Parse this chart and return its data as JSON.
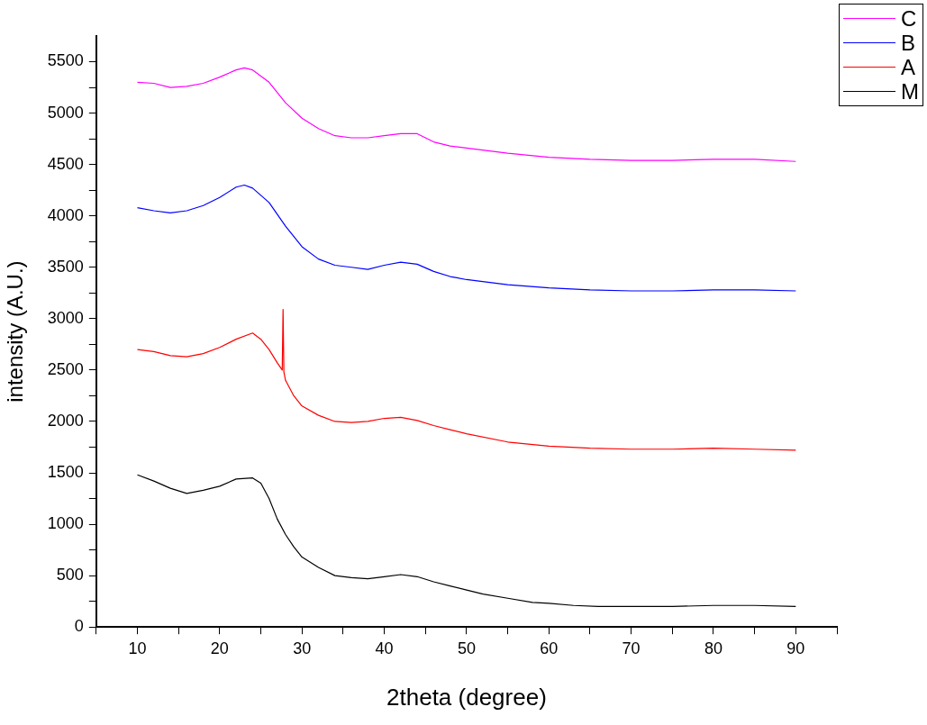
{
  "chart_data": {
    "type": "line",
    "xlabel": "2theta (degree)",
    "ylabel": "intensity (A.U.)",
    "xlim": [
      5,
      95
    ],
    "xticks": [
      {
        "value": 5,
        "label": null
      },
      10,
      {
        "value": 15,
        "label": null
      },
      20,
      {
        "value": 25,
        "label": null
      },
      30,
      {
        "value": 35,
        "label": null
      },
      40,
      {
        "value": 45,
        "label": null
      },
      50,
      {
        "value": 55,
        "label": null
      },
      60,
      {
        "value": 65,
        "label": null
      },
      70,
      {
        "value": 75,
        "label": null
      },
      80,
      {
        "value": 85,
        "label": null
      },
      90,
      {
        "value": 95,
        "label": null
      }
    ],
    "ylim": [
      0,
      5750
    ],
    "yticks": [
      0,
      {
        "value": 250,
        "label": null
      },
      500,
      {
        "value": 750,
        "label": null
      },
      1000,
      {
        "value": 1250,
        "label": null
      },
      1500,
      {
        "value": 1750,
        "label": null
      },
      2000,
      {
        "value": 2250,
        "label": null
      },
      2500,
      {
        "value": 2750,
        "label": null
      },
      3000,
      {
        "value": 3250,
        "label": null
      },
      3500,
      {
        "value": 3750,
        "label": null
      },
      4000,
      {
        "value": 4250,
        "label": null
      },
      4500,
      {
        "value": 4750,
        "label": null
      },
      5000,
      {
        "value": 5250,
        "label": null
      },
      5500
    ],
    "grid": false,
    "legend": "top right",
    "series": [
      {
        "name": "C",
        "color": "#ff00ff",
        "x": [
          10,
          12,
          14,
          16,
          18,
          20,
          22,
          23,
          24,
          26,
          28,
          30,
          32,
          34,
          36,
          38,
          40,
          42,
          44,
          46,
          48,
          50,
          55,
          60,
          65,
          70,
          75,
          80,
          85,
          90
        ],
        "values": [
          5300,
          5290,
          5250,
          5260,
          5290,
          5350,
          5420,
          5440,
          5420,
          5300,
          5100,
          4950,
          4850,
          4780,
          4760,
          4760,
          4780,
          4800,
          4800,
          4720,
          4680,
          4660,
          4610,
          4570,
          4550,
          4540,
          4540,
          4550,
          4550,
          4530
        ]
      },
      {
        "name": "B",
        "color": "#0000ff",
        "x": [
          10,
          12,
          14,
          16,
          18,
          20,
          22,
          23,
          24,
          26,
          28,
          30,
          32,
          34,
          36,
          38,
          40,
          42,
          44,
          46,
          48,
          50,
          55,
          60,
          65,
          70,
          75,
          80,
          85,
          90
        ],
        "values": [
          4080,
          4050,
          4030,
          4050,
          4100,
          4180,
          4280,
          4300,
          4270,
          4130,
          3900,
          3700,
          3580,
          3520,
          3500,
          3480,
          3520,
          3550,
          3530,
          3460,
          3410,
          3380,
          3330,
          3300,
          3280,
          3270,
          3270,
          3280,
          3280,
          3270
        ]
      },
      {
        "name": "A",
        "color": "#ff0000",
        "x": [
          10,
          12,
          14,
          16,
          18,
          20,
          22,
          24,
          25,
          26,
          27,
          27.6,
          27.7,
          27.8,
          28,
          29,
          30,
          32,
          34,
          36,
          38,
          40,
          42,
          44,
          46,
          48,
          50,
          55,
          60,
          65,
          70,
          75,
          80,
          85,
          90
        ],
        "values": [
          2700,
          2680,
          2640,
          2630,
          2660,
          2720,
          2800,
          2860,
          2800,
          2700,
          2570,
          2500,
          3090,
          2480,
          2400,
          2250,
          2150,
          2060,
          2000,
          1990,
          2000,
          2030,
          2040,
          2010,
          1960,
          1920,
          1880,
          1800,
          1760,
          1740,
          1730,
          1730,
          1740,
          1730,
          1720
        ]
      },
      {
        "name": "M",
        "color": "#000000",
        "x": [
          10,
          12,
          14,
          16,
          18,
          20,
          22,
          24,
          25,
          26,
          27,
          28,
          29,
          30,
          32,
          34,
          36,
          38,
          40,
          42,
          44,
          46,
          48,
          50,
          52,
          55,
          58,
          60,
          63,
          66,
          70,
          75,
          80,
          85,
          90
        ],
        "values": [
          1480,
          1420,
          1350,
          1300,
          1330,
          1370,
          1440,
          1450,
          1400,
          1250,
          1050,
          900,
          780,
          680,
          580,
          500,
          480,
          470,
          490,
          510,
          490,
          440,
          400,
          360,
          320,
          280,
          240,
          230,
          210,
          200,
          200,
          200,
          210,
          210,
          200
        ]
      }
    ]
  }
}
